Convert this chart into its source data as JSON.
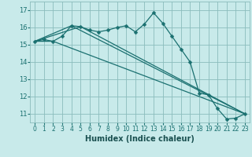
{
  "title": "",
  "xlabel": "Humidex (Indice chaleur)",
  "bg_color": "#c8eaea",
  "grid_color": "#8bbcbc",
  "line_color": "#1a7070",
  "xlim": [
    -0.5,
    23.5
  ],
  "ylim": [
    10.5,
    17.5
  ],
  "yticks": [
    11,
    12,
    13,
    14,
    15,
    16,
    17
  ],
  "xticks": [
    0,
    1,
    2,
    3,
    4,
    5,
    6,
    7,
    8,
    9,
    10,
    11,
    12,
    13,
    14,
    15,
    16,
    17,
    18,
    19,
    20,
    21,
    22,
    23
  ],
  "main_x": [
    0,
    1,
    2,
    3,
    4,
    5,
    6,
    7,
    8,
    9,
    10,
    11,
    12,
    13,
    14,
    15,
    16,
    17,
    18,
    19,
    20,
    21,
    22,
    23
  ],
  "main_y": [
    15.2,
    15.3,
    15.2,
    15.5,
    16.1,
    16.05,
    15.85,
    15.75,
    15.85,
    16.0,
    16.1,
    15.75,
    16.2,
    16.85,
    16.25,
    15.5,
    14.75,
    14.0,
    12.2,
    12.1,
    11.3,
    10.7,
    10.75,
    11.0
  ],
  "ref_lines": [
    {
      "x": [
        0,
        2,
        23
      ],
      "y": [
        15.2,
        15.2,
        11.0
      ]
    },
    {
      "x": [
        0,
        4,
        23
      ],
      "y": [
        15.2,
        16.1,
        11.0
      ]
    },
    {
      "x": [
        0,
        5,
        23
      ],
      "y": [
        15.2,
        16.05,
        11.0
      ]
    }
  ],
  "xlabel_fontsize": 7,
  "xlabel_color": "#1a5050",
  "tick_fontsize": 5.5,
  "ytick_fontsize": 6.0,
  "line_width": 0.9,
  "marker_size": 2.5
}
